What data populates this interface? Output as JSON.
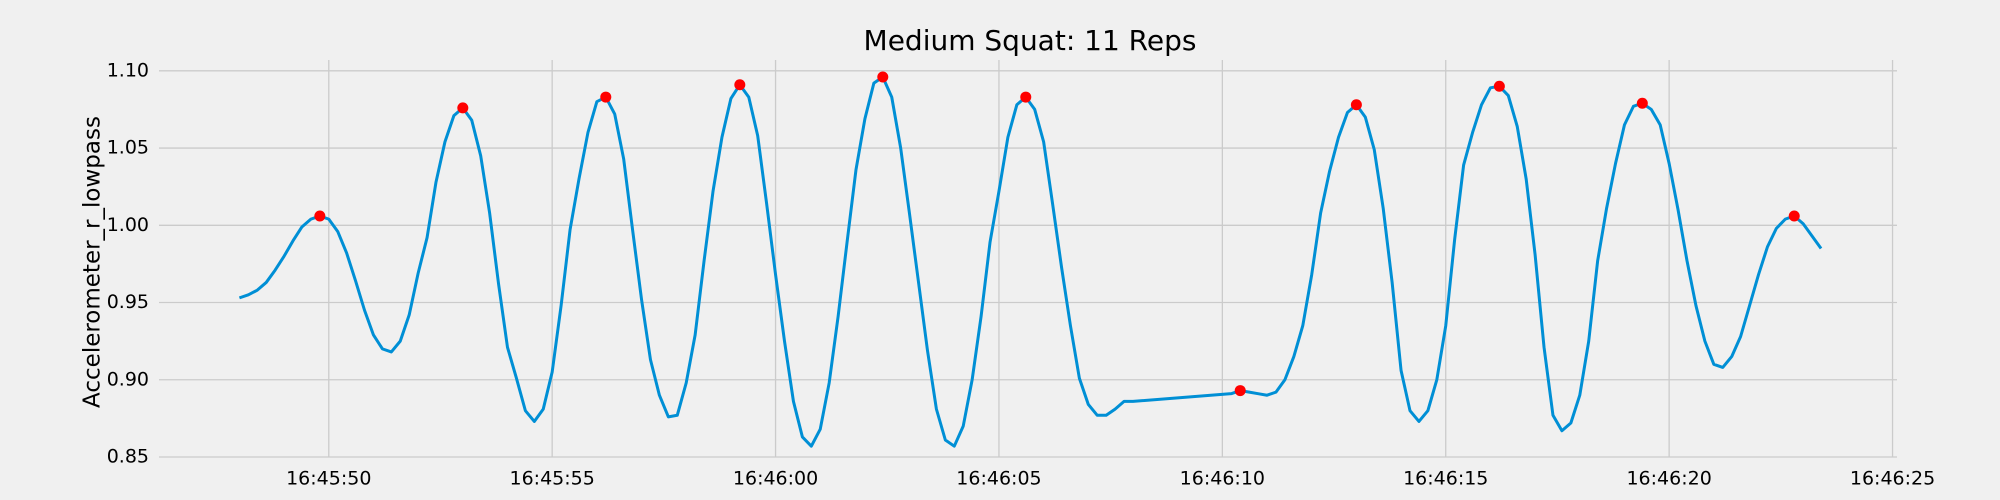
{
  "chart_data": {
    "type": "line",
    "title": "Medium Squat: 11 Reps",
    "ylabel": "Accelerometer_r_lowpass",
    "grid": true,
    "xlim": [
      "16:45:46.2",
      "16:46:25.1"
    ],
    "xticks": [
      "16:45:50",
      "16:45:55",
      "16:46:00",
      "16:46:05",
      "16:46:10",
      "16:46:15",
      "16:46:20",
      "16:46:25"
    ],
    "ylim": [
      0.85,
      1.107
    ],
    "yticks": [
      {
        "value": 0.85,
        "label": "0.85"
      },
      {
        "value": 0.9,
        "label": "0.90"
      },
      {
        "value": 0.95,
        "label": "0.95"
      },
      {
        "value": 1.0,
        "label": "1.00"
      },
      {
        "value": 1.05,
        "label": "1.05"
      },
      {
        "value": 1.1,
        "label": "1.10"
      }
    ],
    "series": [
      {
        "type": "line",
        "color": "#008fd5",
        "x": [
          "16:45:48.0",
          "16:45:48.2",
          "16:45:48.4",
          "16:45:48.6",
          "16:45:48.8",
          "16:45:49.0",
          "16:45:49.2",
          "16:45:49.4",
          "16:45:49.6",
          "16:45:49.8",
          "16:45:50.0",
          "16:45:50.2",
          "16:45:50.4",
          "16:45:50.6",
          "16:45:50.8",
          "16:45:51.0",
          "16:45:51.2",
          "16:45:51.4",
          "16:45:51.6",
          "16:45:51.8",
          "16:45:52.0",
          "16:45:52.2",
          "16:45:52.4",
          "16:45:52.6",
          "16:45:52.8",
          "16:45:53.0",
          "16:45:53.2",
          "16:45:53.4",
          "16:45:53.6",
          "16:45:53.8",
          "16:45:54.0",
          "16:45:54.2",
          "16:45:54.4",
          "16:45:54.6",
          "16:45:54.8",
          "16:45:55.0",
          "16:45:55.2",
          "16:45:55.4",
          "16:45:55.6",
          "16:45:55.8",
          "16:45:56.0",
          "16:45:56.2",
          "16:45:56.4",
          "16:45:56.6",
          "16:45:56.8",
          "16:45:57.0",
          "16:45:57.2",
          "16:45:57.4",
          "16:45:57.6",
          "16:45:57.8",
          "16:45:58.0",
          "16:45:58.2",
          "16:45:58.4",
          "16:45:58.6",
          "16:45:58.8",
          "16:45:59.0",
          "16:45:59.2",
          "16:45:59.4",
          "16:45:59.6",
          "16:45:59.8",
          "16:46:00.0",
          "16:46:00.2",
          "16:46:00.4",
          "16:46:00.6",
          "16:46:00.8",
          "16:46:01.0",
          "16:46:01.2",
          "16:46:01.4",
          "16:46:01.6",
          "16:46:01.8",
          "16:46:02.0",
          "16:46:02.2",
          "16:46:02.4",
          "16:46:02.6",
          "16:46:02.8",
          "16:46:03.0",
          "16:46:03.2",
          "16:46:03.4",
          "16:46:03.6",
          "16:46:03.8",
          "16:46:04.0",
          "16:46:04.2",
          "16:46:04.4",
          "16:46:04.6",
          "16:46:04.8",
          "16:46:05.0",
          "16:46:05.2",
          "16:46:05.4",
          "16:46:05.6",
          "16:46:05.8",
          "16:46:06.0",
          "16:46:06.2",
          "16:46:06.4",
          "16:46:06.6",
          "16:46:06.8",
          "16:46:07.0",
          "16:46:07.2",
          "16:46:07.4",
          "16:46:07.6",
          "16:46:07.8",
          "16:46:08.0",
          "16:46:10.2",
          "16:46:10.4",
          "16:46:10.6",
          "16:46:10.8",
          "16:46:11.0",
          "16:46:11.2",
          "16:46:11.4",
          "16:46:11.6",
          "16:46:11.8",
          "16:46:12.0",
          "16:46:12.2",
          "16:46:12.4",
          "16:46:12.6",
          "16:46:12.8",
          "16:46:13.0",
          "16:46:13.2",
          "16:46:13.4",
          "16:46:13.6",
          "16:46:13.8",
          "16:46:14.0",
          "16:46:14.2",
          "16:46:14.4",
          "16:46:14.6",
          "16:46:14.8",
          "16:46:15.0",
          "16:46:15.2",
          "16:46:15.4",
          "16:46:15.6",
          "16:46:15.8",
          "16:46:16.0",
          "16:46:16.2",
          "16:46:16.4",
          "16:46:16.6",
          "16:46:16.8",
          "16:46:17.0",
          "16:46:17.2",
          "16:46:17.4",
          "16:46:17.6",
          "16:46:17.8",
          "16:46:18.0",
          "16:46:18.2",
          "16:46:18.4",
          "16:46:18.6",
          "16:46:18.8",
          "16:46:19.0",
          "16:46:19.2",
          "16:46:19.4",
          "16:46:19.6",
          "16:46:19.8",
          "16:46:20.0",
          "16:46:20.2",
          "16:46:20.4",
          "16:46:20.6",
          "16:46:20.8",
          "16:46:21.0",
          "16:46:21.2",
          "16:46:21.4",
          "16:46:21.6",
          "16:46:21.8",
          "16:46:22.0",
          "16:46:22.2",
          "16:46:22.4",
          "16:46:22.6",
          "16:46:22.8",
          "16:46:23.0",
          "16:46:23.2",
          "16:46:23.4"
        ],
        "values": [
          0.953,
          0.955,
          0.958,
          0.963,
          0.971,
          0.98,
          0.99,
          0.999,
          1.004,
          1.006,
          1.004,
          0.996,
          0.982,
          0.964,
          0.945,
          0.929,
          0.92,
          0.918,
          0.925,
          0.942,
          0.969,
          0.992,
          1.028,
          1.054,
          1.071,
          1.076,
          1.068,
          1.045,
          1.008,
          0.962,
          0.921,
          0.901,
          0.88,
          0.873,
          0.881,
          0.905,
          0.948,
          0.997,
          1.03,
          1.06,
          1.08,
          1.083,
          1.072,
          1.043,
          0.997,
          0.952,
          0.913,
          0.89,
          0.876,
          0.877,
          0.898,
          0.929,
          0.977,
          1.022,
          1.057,
          1.082,
          1.091,
          1.083,
          1.058,
          1.014,
          0.968,
          0.925,
          0.886,
          0.863,
          0.857,
          0.868,
          0.898,
          0.941,
          0.989,
          1.036,
          1.069,
          1.092,
          1.096,
          1.083,
          1.05,
          1.007,
          0.963,
          0.919,
          0.881,
          0.861,
          0.857,
          0.87,
          0.9,
          0.941,
          0.989,
          1.022,
          1.057,
          1.078,
          1.083,
          1.075,
          1.054,
          1.014,
          0.973,
          0.935,
          0.901,
          0.884,
          0.877,
          0.877,
          0.881,
          0.886,
          0.886,
          0.891,
          0.893,
          0.892,
          0.891,
          0.89,
          0.892,
          0.9,
          0.915,
          0.935,
          0.968,
          1.008,
          1.035,
          1.057,
          1.073,
          1.078,
          1.07,
          1.049,
          1.011,
          0.963,
          0.906,
          0.88,
          0.873,
          0.88,
          0.9,
          0.935,
          0.991,
          1.039,
          1.06,
          1.078,
          1.089,
          1.09,
          1.084,
          1.064,
          1.03,
          0.981,
          0.921,
          0.877,
          0.867,
          0.872,
          0.89,
          0.925,
          0.977,
          1.011,
          1.04,
          1.065,
          1.077,
          1.079,
          1.075,
          1.065,
          1.04,
          1.01,
          0.977,
          0.948,
          0.925,
          0.91,
          0.908,
          0.915,
          0.928,
          0.948,
          0.968,
          0.986,
          0.998,
          1.004,
          1.006,
          1.001,
          0.993,
          0.985
        ]
      },
      {
        "type": "scatter",
        "color": "#ff0000",
        "x": [
          "16:45:49.8",
          "16:45:53.0",
          "16:45:56.2",
          "16:45:59.2",
          "16:46:02.4",
          "16:46:05.6",
          "16:46:10.4",
          "16:46:13.0",
          "16:46:16.2",
          "16:46:19.4",
          "16:46:22.8"
        ],
        "values": [
          1.006,
          1.076,
          1.083,
          1.091,
          1.096,
          1.083,
          0.893,
          1.078,
          1.09,
          1.079,
          1.006
        ]
      }
    ]
  }
}
